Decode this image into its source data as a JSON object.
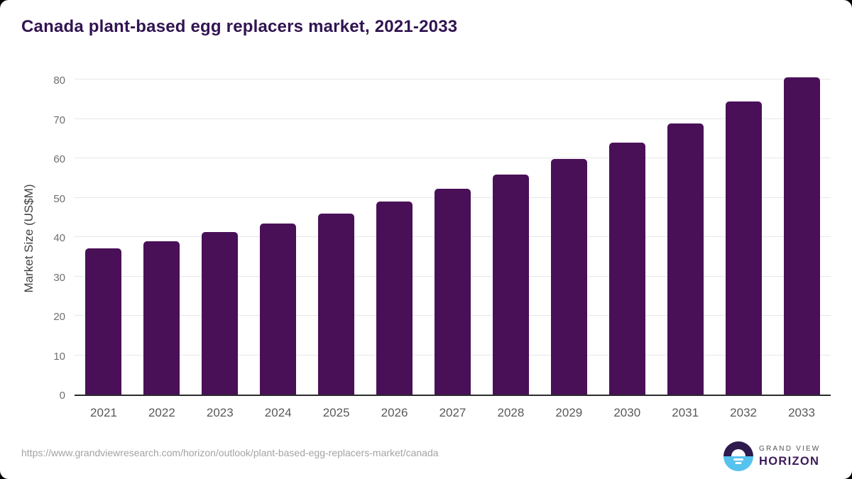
{
  "chart_data": {
    "type": "bar",
    "title": "Canada plant-based egg replacers market, 2021-2033",
    "categories": [
      "2021",
      "2022",
      "2023",
      "2024",
      "2025",
      "2026",
      "2027",
      "2028",
      "2029",
      "2030",
      "2031",
      "2032",
      "2033"
    ],
    "values": [
      37.2,
      39.0,
      41.2,
      43.5,
      46.0,
      49.0,
      52.3,
      55.8,
      59.8,
      64.0,
      68.9,
      74.4,
      80.5
    ],
    "xlabel": "",
    "ylabel": "Market Size (US$M)",
    "ylim": [
      0,
      80
    ],
    "y_ticks": [
      0,
      10,
      20,
      30,
      40,
      50,
      60,
      70,
      80
    ],
    "grid": "horizontal gridlines on",
    "legend": "none",
    "bar_color": "#491058"
  },
  "colors": {
    "title": "#311452",
    "bar": "#491058",
    "gridline": "#e7e7e7",
    "axis_line": "#2b2b2b",
    "x_tick": "#58595b",
    "y_tick": "#6e6f72",
    "url_text": "#a3a3a3",
    "logo_purple": "#2e1a4d",
    "logo_blue": "#56c2ee"
  },
  "footer": {
    "source_url": "https://www.grandviewresearch.com/horizon/outlook/plant-based-egg-replacers-market/canada",
    "logo": {
      "line1": "GRAND VIEW",
      "line2": "HORIZON"
    }
  }
}
